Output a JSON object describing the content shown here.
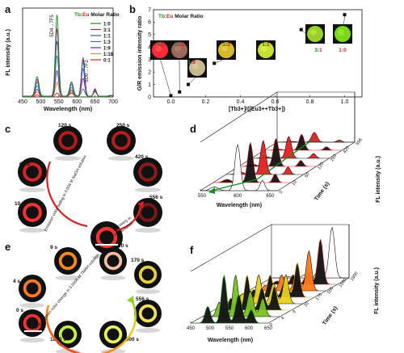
{
  "panels": {
    "a": {
      "letter": "a",
      "ylabel": "FL intensity (a.u.)",
      "xlabel": "Wavelength (nm)",
      "legend_title": [
        "Tb",
        ":",
        "Eu",
        " Molar Ratio"
      ],
      "transitions": [
        "5D4→7F5",
        "5D0→7F2"
      ],
      "xticks": [
        "450",
        "500",
        "550",
        "600",
        "650",
        "700"
      ]
    },
    "b": {
      "letter": "b",
      "ylabel": "G/R emission intensity ratio",
      "xlabel": "[Tb3+]/([Eu3++Tb3+])",
      "legend_title": [
        "Tb",
        ":",
        "Eu",
        " Molar Ratio"
      ],
      "xticks": [
        "0.0",
        "0.2",
        "0.4",
        "0.6",
        "0.8",
        "1.0"
      ],
      "yticks": [
        "0",
        "1",
        "2",
        "3",
        "4",
        "5",
        "6",
        "7"
      ],
      "swatch_labels": [
        "0:1",
        "1:18",
        "1:9",
        "1:3",
        "1:1",
        "3:1",
        "1:0"
      ]
    },
    "c": {
      "letter": "c",
      "times": [
        "120 s",
        "250 s",
        "60 s",
        "420 s",
        "10 s",
        "556 s"
      ],
      "arc_text": "Emission color fading in 0.004 M NaOH solution",
      "recovery_text": [
        "Recovery in",
        "HCl solution"
      ]
    },
    "d": {
      "letter": "d",
      "ylabel": "FL intensity (a.u.)",
      "xlabel": "Wavelength (nm)",
      "zlabel": "Time (s)",
      "xticks": [
        "550",
        "600",
        "650"
      ],
      "zticks": [
        "0",
        "10",
        "60",
        "120",
        "250",
        "420",
        "556"
      ]
    },
    "e": {
      "letter": "e",
      "times": [
        "9 s",
        "20 s",
        "4 s",
        "170 s",
        "0 s",
        "556 s",
        "1800 s",
        "1500 s"
      ],
      "arc_text": "Red-to-green color change in 0.0006 M TMAH solution"
    },
    "f": {
      "letter": "f",
      "ylabel": "FL intensity (a.u.)",
      "xlabel": "Wavelength (nm)",
      "zlabel": "Time (s)",
      "xticks": [
        "450",
        "500",
        "550",
        "600",
        "650"
      ],
      "zticks": [
        "0",
        "4",
        "9",
        "20",
        "170",
        "556",
        "1500",
        "1800"
      ]
    }
  },
  "chart_data": [
    {
      "type": "line",
      "panel": "a",
      "x": [
        450,
        490,
        545,
        585,
        620,
        650,
        700
      ],
      "series": [
        {
          "name": "1:0",
          "color": "#1a8c1a",
          "values": [
            0.3,
            2.2,
            9.2,
            1.6,
            0.8,
            0.5,
            0.1
          ]
        },
        {
          "name": "3:1",
          "color": "#b0198c",
          "values": [
            0.3,
            1.9,
            7.6,
            1.5,
            2.0,
            0.6,
            0.1
          ]
        },
        {
          "name": "1:1",
          "color": "#3b4cc0",
          "values": [
            0.3,
            1.6,
            6.2,
            1.3,
            3.1,
            0.7,
            0.1
          ]
        },
        {
          "name": "1:3",
          "color": "#1a8c8c",
          "values": [
            0.2,
            1.2,
            4.6,
            1.0,
            3.9,
            0.7,
            0.1
          ]
        },
        {
          "name": "1:9",
          "color": "#7a1ab0",
          "values": [
            0.2,
            0.8,
            2.9,
            0.7,
            4.2,
            0.8,
            0.1
          ]
        },
        {
          "name": "1:18",
          "color": "#d98c1a",
          "values": [
            0.2,
            0.5,
            1.6,
            0.5,
            4.3,
            0.8,
            0.1
          ]
        },
        {
          "name": "0:1",
          "color": "#d92020",
          "values": [
            0.1,
            0.2,
            0.4,
            0.4,
            4.4,
            0.9,
            0.1
          ]
        }
      ],
      "xlim": [
        450,
        700
      ]
    },
    {
      "type": "scatter",
      "panel": "b",
      "x": [
        0.0,
        0.05,
        0.1,
        0.25,
        0.5,
        0.75,
        1.0
      ],
      "values": [
        0.1,
        0.4,
        1.0,
        2.7,
        3.3,
        5.4,
        6.6
      ],
      "xlim": [
        -0.1,
        1.1
      ],
      "ylim": [
        0,
        7
      ]
    }
  ]
}
